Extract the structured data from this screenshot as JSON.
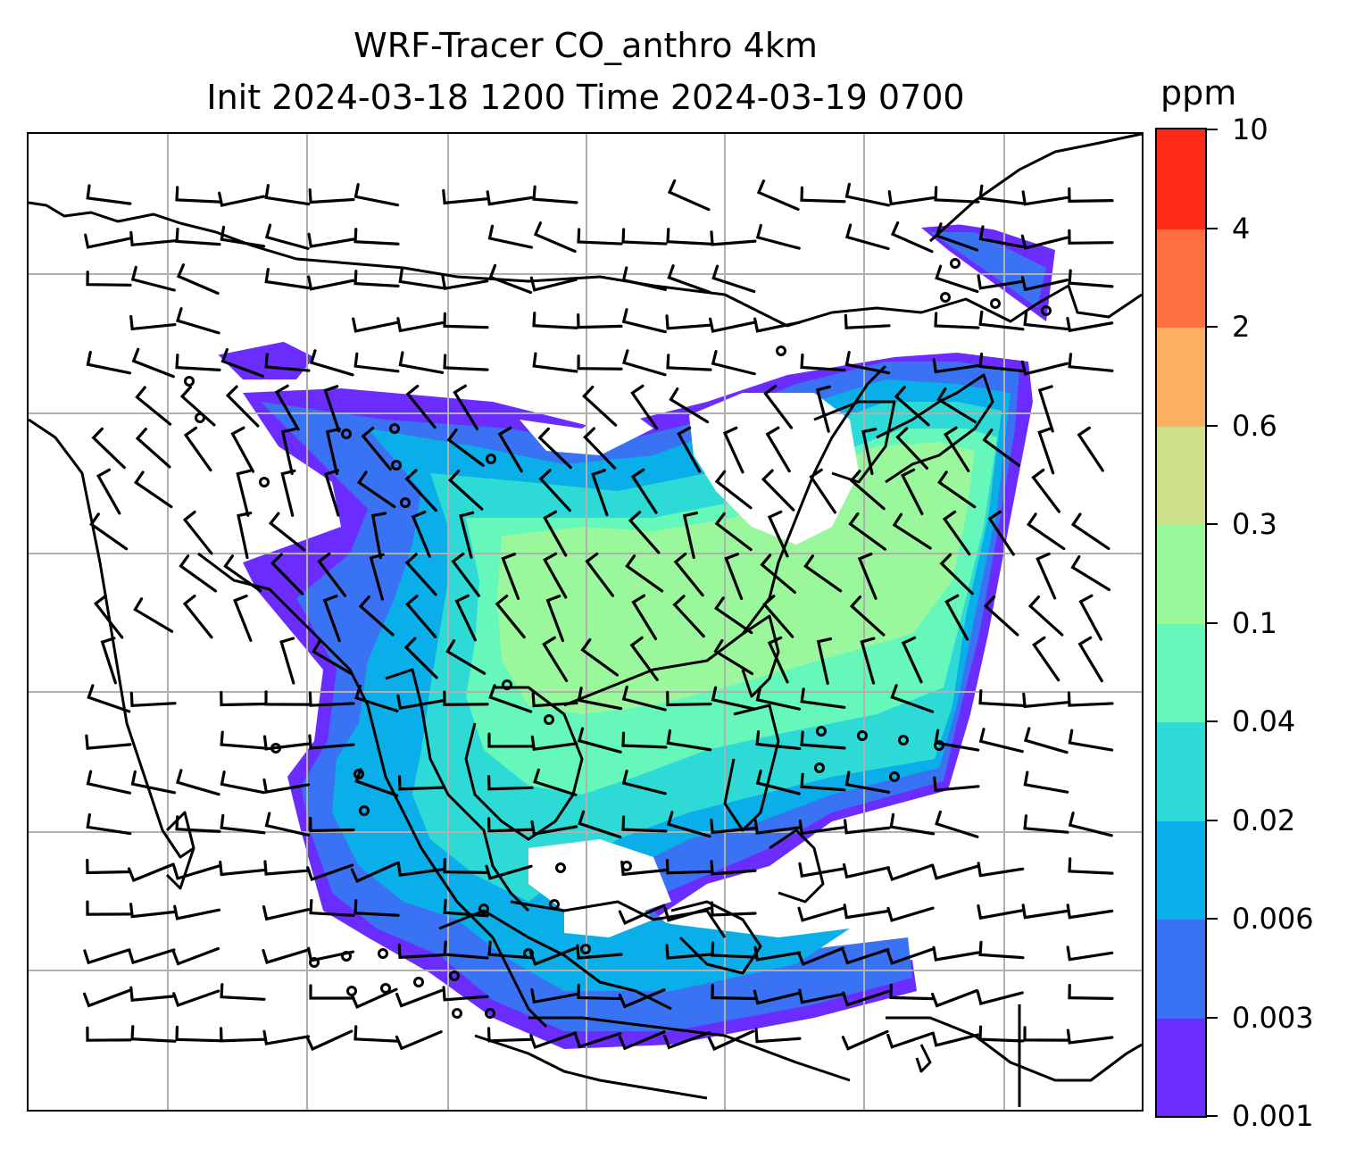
{
  "title": {
    "line1": "WRF-Tracer CO_anthro 4km",
    "line2": "Init 2024-03-18 1200 Time 2024-03-19 0700"
  },
  "colorbar": {
    "unit": "ppm",
    "levels": [
      "0.001",
      "0.003",
      "0.006",
      "0.02",
      "0.04",
      "0.1",
      "0.3",
      "0.6",
      "2",
      "4",
      "10"
    ],
    "colors": [
      "#6a2cff",
      "#3a72f4",
      "#0aaee8",
      "#2edad6",
      "#66f7ba",
      "#9bf79b",
      "#cfe08a",
      "#fdb062",
      "#ff7040",
      "#ff2a18"
    ]
  },
  "map": {
    "gridlines": true,
    "coastline_color": "#000000",
    "gridline_color": "#b0b0b0",
    "wind_barbs": true,
    "calm_wind_circles": true
  }
}
